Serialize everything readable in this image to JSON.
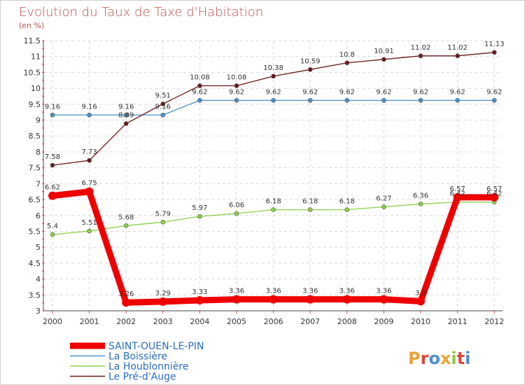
{
  "chart_data": {
    "type": "line",
    "title": "Evolution du Taux de Taxe d'Habitation",
    "subtitle": "(en %)",
    "x": [
      "2000",
      "2001",
      "2002",
      "2003",
      "2004",
      "2005",
      "2006",
      "2007",
      "2008",
      "2009",
      "2010",
      "2011",
      "2012"
    ],
    "ylim": [
      3,
      11.5
    ],
    "yticks": [
      "3",
      "3.5",
      "4",
      "4.5",
      "5",
      "5.5",
      "6",
      "6.5",
      "7",
      "7.5",
      "8",
      "8.5",
      "9",
      "9.5",
      "10",
      "10.5",
      "11",
      "11.5"
    ],
    "series": [
      {
        "name": "SAINT-OUEN-LE-PIN",
        "color": "#ee0000",
        "values": [
          6.62,
          6.75,
          3.26,
          3.29,
          3.33,
          3.36,
          3.36,
          3.36,
          3.36,
          3.36,
          3.3,
          6.57,
          6.57
        ],
        "labels": [
          "6.62",
          "6.75",
          "3.26",
          "3.29",
          "3.33",
          "3.36",
          "3.36",
          "3.36",
          "3.36",
          "3.36",
          "3.3",
          "6.57",
          "6.57"
        ]
      },
      {
        "name": "La Boissière",
        "color": "#4a90c8",
        "values": [
          9.16,
          9.16,
          9.16,
          9.16,
          9.62,
          9.62,
          9.62,
          9.62,
          9.62,
          9.62,
          9.62,
          9.62,
          9.62
        ],
        "labels": [
          "9.16",
          "9.16",
          "9.16",
          "9.16",
          "9.62",
          "9.62",
          "9.62",
          "9.62",
          "9.62",
          "9.62",
          "9.62",
          "9.62",
          "9.62"
        ]
      },
      {
        "name": "La Houblonnière",
        "color": "#8dd04a",
        "values": [
          5.4,
          5.51,
          5.68,
          5.79,
          5.97,
          6.06,
          6.18,
          6.18,
          6.18,
          6.27,
          6.36,
          6.42,
          6.42
        ],
        "labels": [
          "5.4",
          "5.51",
          "5.68",
          "5.79",
          "5.97",
          "6.06",
          "6.18",
          "6.18",
          "6.18",
          "6.27",
          "6.36",
          "6.42",
          "6.42"
        ]
      },
      {
        "name": "Le Pré-d'Auge",
        "color": "#6b1a1a",
        "values": [
          7.58,
          7.73,
          8.89,
          9.51,
          10.08,
          10.08,
          10.38,
          10.59,
          10.8,
          10.91,
          11.02,
          11.02,
          11.13
        ],
        "labels": [
          "7.58",
          "7.73",
          "8.89",
          "9.51",
          "10.08",
          "10.08",
          "10.38",
          "10.59",
          "10.8",
          "10.91",
          "11.02",
          "11.02",
          "11.13"
        ]
      }
    ]
  },
  "logo": {
    "text": "Proxiti",
    "letters": [
      "P",
      "r",
      "o",
      "x",
      "i",
      "t",
      "i"
    ],
    "colors": [
      "#e8a33a",
      "#d9473b",
      "#4c8ed1",
      "#e8a33a",
      "#8dc63f",
      "#d9473b",
      "#4c8ed1"
    ]
  }
}
